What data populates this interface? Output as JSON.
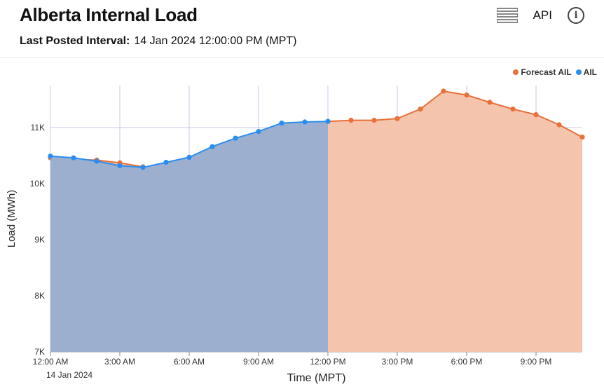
{
  "header": {
    "title": "Alberta Internal Load",
    "posted_label": "Last Posted Interval:",
    "posted_value": "14 Jan 2024 12:00:00 PM (MPT)",
    "api_label": "API",
    "info_glyph": "i",
    "icons": [
      "list-view-icon",
      "info-icon"
    ]
  },
  "colors": {
    "forecast": "#e8703a",
    "forecast_fill": "#f5c4ac",
    "ail": "#2a8ef0",
    "ail_fill": "#9cafcf",
    "grid": "#c9cbe0"
  },
  "chart_data": {
    "type": "area",
    "xlabel": "Time (MPT)",
    "ylabel": "Load (MWh)",
    "date_label": "14 Jan 2024",
    "x_ticks": [
      "12:00 AM",
      "3:00 AM",
      "6:00 AM",
      "9:00 AM",
      "12:00 PM",
      "3:00 PM",
      "6:00 PM",
      "9:00 PM"
    ],
    "y_ticks": [
      "7K",
      "8K",
      "9K",
      "10K",
      "11K"
    ],
    "ylim": [
      7000,
      11750
    ],
    "x_hours": [
      0,
      23
    ],
    "legend": {
      "position": "top-right"
    },
    "series": [
      {
        "name": "Forecast AIL",
        "hours": [
          0,
          1,
          2,
          3,
          4,
          5,
          6,
          7,
          8,
          9,
          10,
          11,
          12,
          13,
          14,
          15,
          16,
          17,
          18,
          19,
          20,
          21,
          22,
          23
        ],
        "values": [
          10460,
          10430,
          10420,
          10370,
          10300,
          10300,
          10440,
          10620,
          10810,
          10900,
          11050,
          11090,
          11110,
          11130,
          11130,
          11160,
          11330,
          11650,
          11580,
          11450,
          11330,
          11230,
          11050,
          10830
        ]
      },
      {
        "name": "AIL",
        "hours": [
          0,
          1,
          2,
          3,
          4,
          5,
          6,
          7,
          8,
          9,
          10,
          11,
          12
        ],
        "values": [
          10490,
          10460,
          10400,
          10320,
          10290,
          10380,
          10470,
          10660,
          10810,
          10930,
          11080,
          11100,
          11110
        ]
      }
    ]
  }
}
